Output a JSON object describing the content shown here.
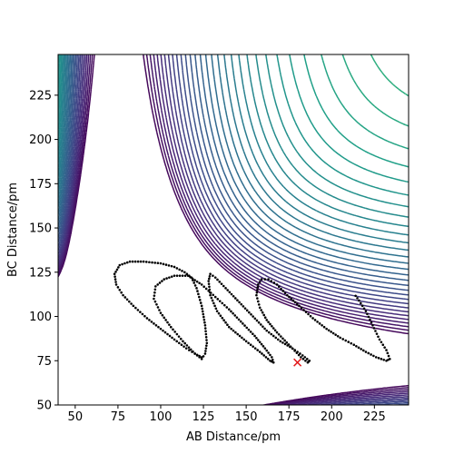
{
  "chart_data": {
    "type": "contour",
    "title": "",
    "xlabel": "AB Distance/pm",
    "ylabel": "BC Distance/pm",
    "xlim": [
      40,
      245
    ],
    "ylim": [
      50,
      248
    ],
    "x_ticks": [
      50,
      75,
      100,
      125,
      150,
      175,
      200,
      225
    ],
    "y_ticks": [
      50,
      75,
      100,
      125,
      150,
      175,
      200,
      225
    ],
    "colormap": "viridis",
    "trajectory_color": "#000000",
    "marker": {
      "symbol": "x",
      "color": "#e31a1c",
      "x": 180,
      "y": 74
    },
    "trajectory": [
      [
        124,
        77
      ],
      [
        120,
        79
      ],
      [
        115,
        82
      ],
      [
        108,
        87
      ],
      [
        100,
        93
      ],
      [
        92,
        99
      ],
      [
        84,
        106
      ],
      [
        78,
        112
      ],
      [
        74,
        118
      ],
      [
        73,
        124
      ],
      [
        76,
        129
      ],
      [
        82,
        131
      ],
      [
        90,
        131
      ],
      [
        100,
        130
      ],
      [
        108,
        128
      ],
      [
        114,
        125
      ],
      [
        118,
        122
      ],
      [
        121,
        116
      ],
      [
        124,
        106
      ],
      [
        126,
        95
      ],
      [
        127,
        85
      ],
      [
        126,
        79
      ],
      [
        124,
        76
      ],
      [
        120,
        79
      ],
      [
        113,
        86
      ],
      [
        106,
        94
      ],
      [
        100,
        102
      ],
      [
        96,
        110
      ],
      [
        97,
        117
      ],
      [
        102,
        121
      ],
      [
        108,
        123
      ],
      [
        116,
        123
      ],
      [
        124,
        118
      ],
      [
        132,
        111
      ],
      [
        140,
        104
      ],
      [
        148,
        96
      ],
      [
        155,
        89
      ],
      [
        161,
        82
      ],
      [
        165,
        77
      ],
      [
        166,
        74
      ],
      [
        164,
        75
      ],
      [
        158,
        80
      ],
      [
        150,
        86
      ],
      [
        140,
        94
      ],
      [
        133,
        103
      ],
      [
        129,
        112
      ],
      [
        128,
        120
      ],
      [
        129,
        124
      ],
      [
        132,
        122
      ],
      [
        138,
        116
      ],
      [
        146,
        108
      ],
      [
        154,
        100
      ],
      [
        162,
        92
      ],
      [
        170,
        86
      ],
      [
        177,
        82
      ],
      [
        183,
        78
      ],
      [
        187,
        75
      ],
      [
        186,
        74
      ],
      [
        182,
        77
      ],
      [
        176,
        83
      ],
      [
        168,
        91
      ],
      [
        162,
        98
      ],
      [
        158,
        105
      ],
      [
        156,
        112
      ],
      [
        157,
        118
      ],
      [
        159,
        121
      ],
      [
        163,
        121
      ],
      [
        168,
        118
      ],
      [
        174,
        112
      ],
      [
        181,
        106
      ],
      [
        189,
        99
      ],
      [
        197,
        93
      ],
      [
        205,
        88
      ],
      [
        213,
        84
      ],
      [
        220,
        80
      ],
      [
        226,
        77
      ],
      [
        232,
        75
      ],
      [
        234,
        76
      ],
      [
        232,
        81
      ],
      [
        228,
        87
      ],
      [
        224,
        95
      ],
      [
        220,
        103
      ],
      [
        216,
        109
      ],
      [
        213,
        113
      ]
    ]
  }
}
